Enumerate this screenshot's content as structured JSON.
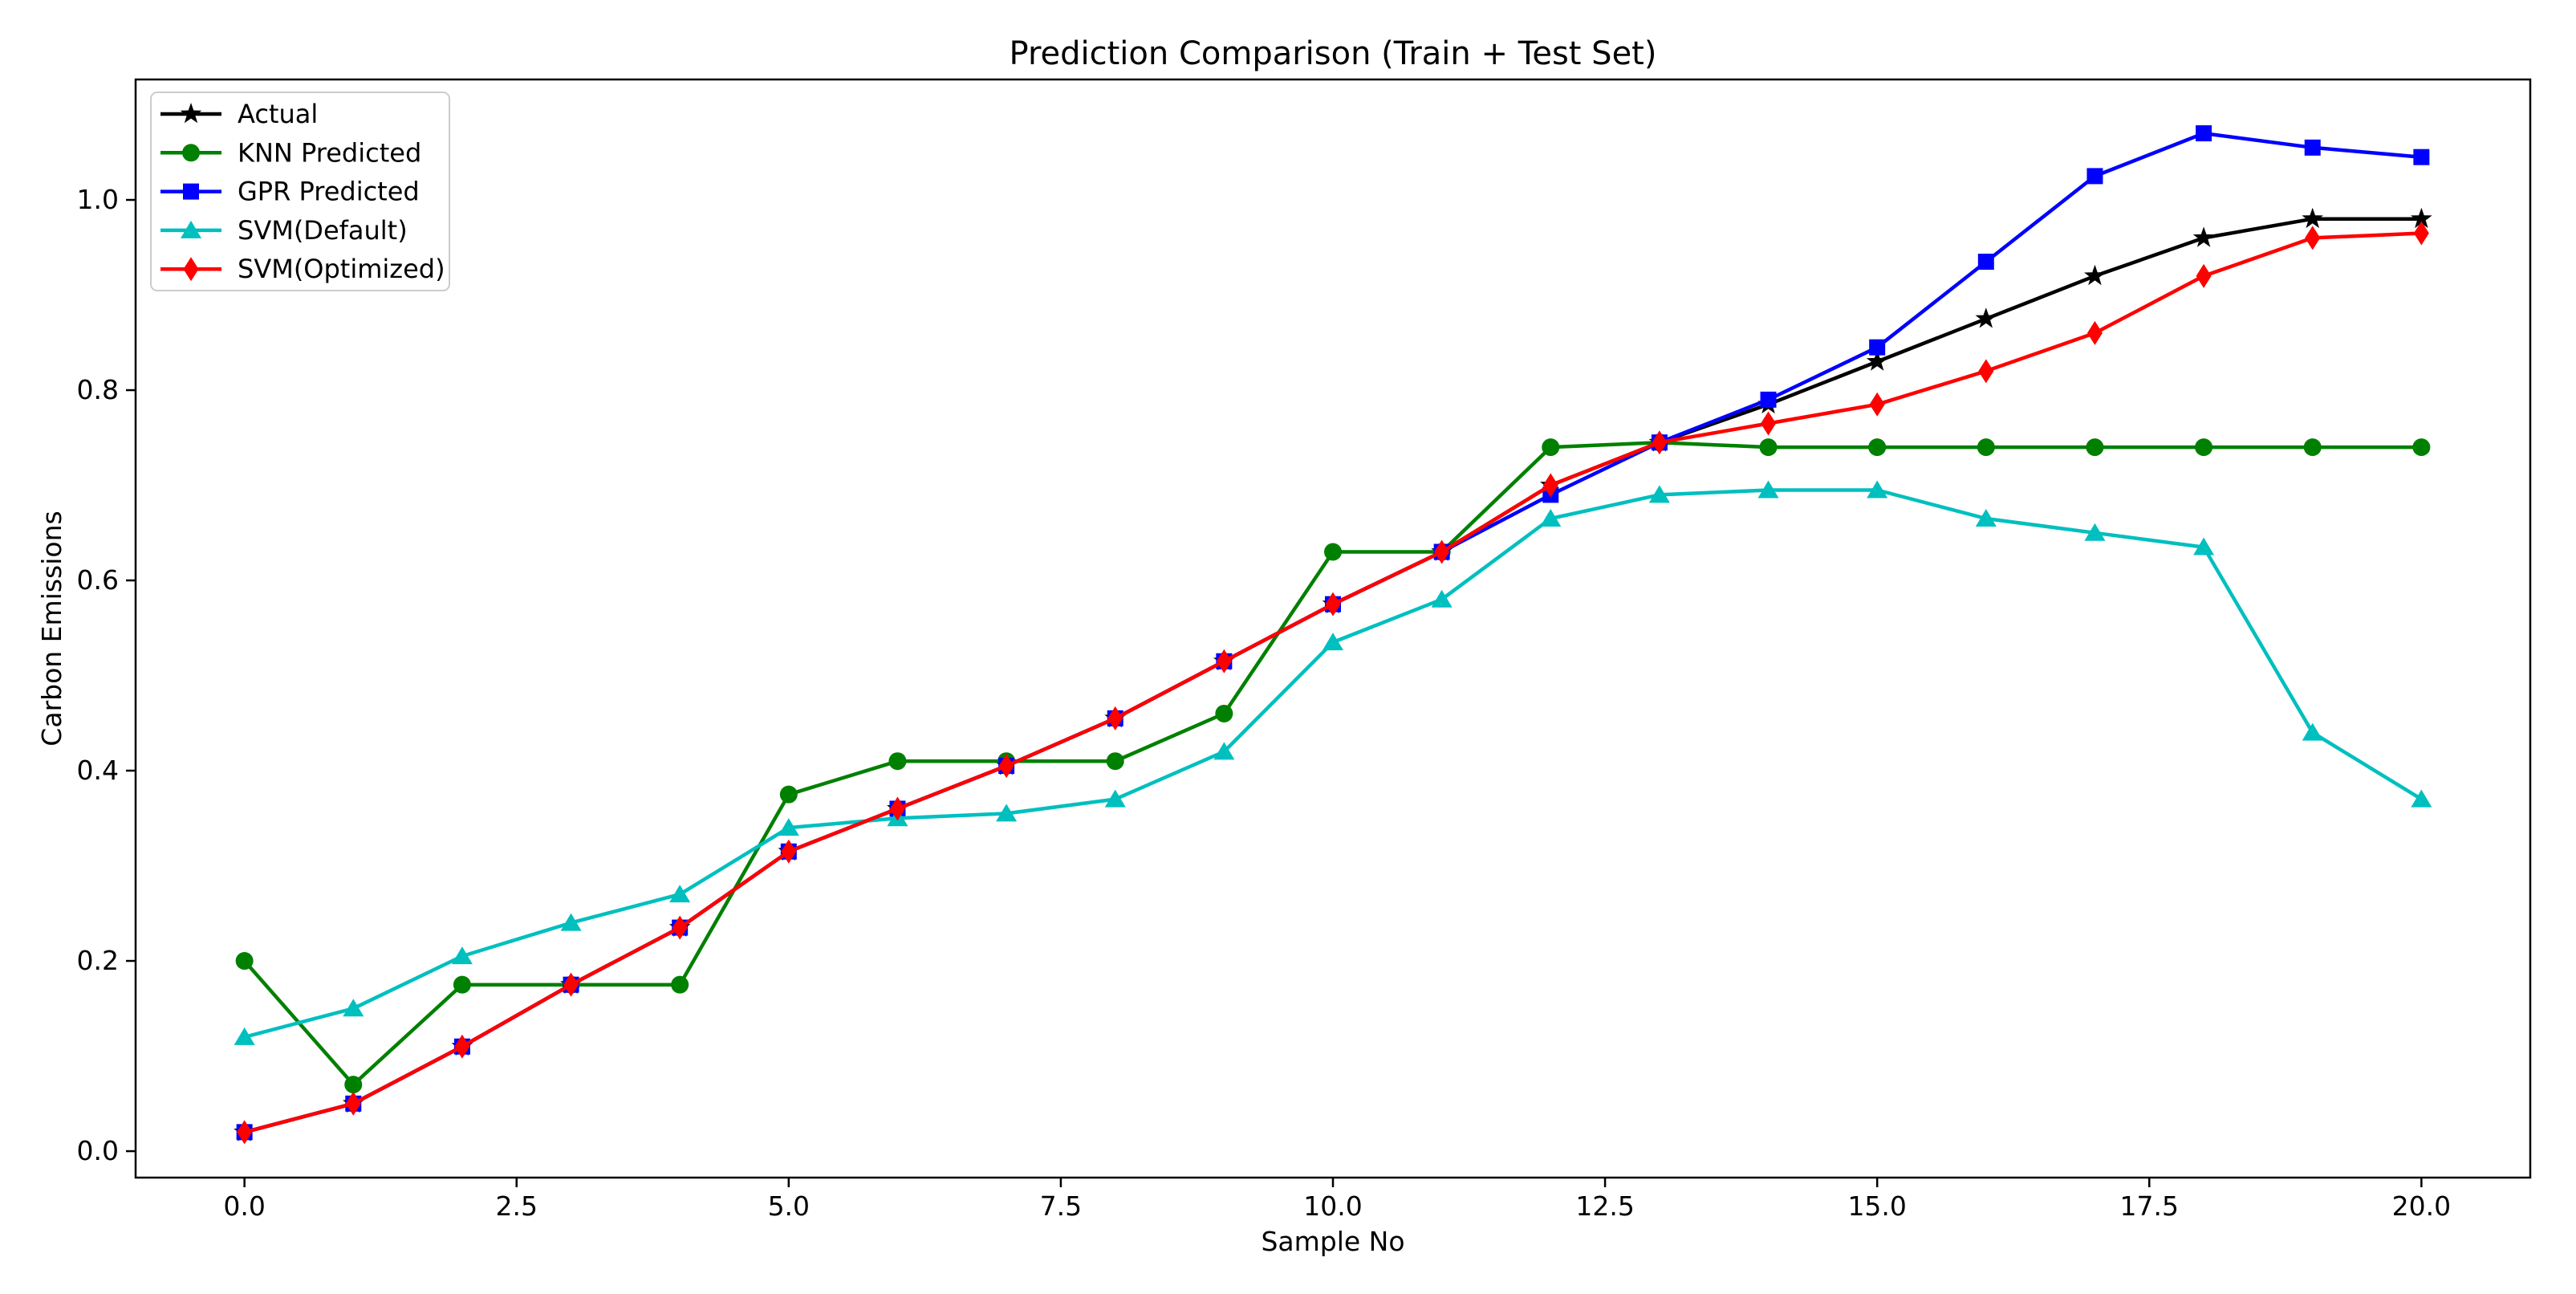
{
  "figure": {
    "background": "#ffffff"
  },
  "chart_data": {
    "type": "line",
    "title": "Prediction Comparison (Train + Test Set)",
    "xlabel": "Sample No",
    "ylabel": "Carbon Emissions",
    "grid": false,
    "legend_position": "upper left",
    "xlim": [
      -1,
      21
    ],
    "ylim": [
      -0.0278,
      1.1266
    ],
    "xticks": [
      0,
      2.5,
      5,
      7.5,
      10,
      12.5,
      15,
      17.5,
      20
    ],
    "xtick_labels": [
      "0.0",
      "2.5",
      "5.0",
      "7.5",
      "10.0",
      "12.5",
      "15.0",
      "17.5",
      "20.0"
    ],
    "yticks": [
      0,
      0.2,
      0.4,
      0.6,
      0.8,
      1.0
    ],
    "ytick_labels": [
      "0.0",
      "0.2",
      "0.4",
      "0.6",
      "0.8",
      "1.0"
    ],
    "x": [
      0,
      1,
      2,
      3,
      4,
      5,
      6,
      7,
      8,
      9,
      10,
      11,
      12,
      13,
      14,
      15,
      16,
      17,
      18,
      19,
      20
    ],
    "series": [
      {
        "name": "Actual",
        "color": "#000000",
        "marker": "star",
        "values": [
          0.02,
          0.05,
          0.11,
          0.175,
          0.235,
          0.315,
          0.36,
          0.405,
          0.455,
          0.515,
          0.575,
          0.63,
          0.7,
          0.745,
          0.785,
          0.83,
          0.875,
          0.92,
          0.96,
          0.98,
          0.98
        ]
      },
      {
        "name": "KNN Predicted",
        "color": "#008000",
        "marker": "circle",
        "values": [
          0.2,
          0.07,
          0.175,
          0.175,
          0.175,
          0.375,
          0.41,
          0.41,
          0.41,
          0.46,
          0.63,
          0.63,
          0.74,
          0.745,
          0.74,
          0.74,
          0.74,
          0.74,
          0.74,
          0.74,
          0.74
        ]
      },
      {
        "name": "GPR Predicted",
        "color": "#0000ff",
        "marker": "square",
        "values": [
          0.02,
          0.05,
          0.11,
          0.175,
          0.235,
          0.315,
          0.36,
          0.405,
          0.455,
          0.515,
          0.575,
          0.63,
          0.69,
          0.745,
          0.79,
          0.845,
          0.935,
          1.025,
          1.07,
          1.055,
          1.045
        ]
      },
      {
        "name": "SVM(Default)",
        "color": "#00bfbf",
        "marker": "triangle",
        "values": [
          0.12,
          0.15,
          0.205,
          0.24,
          0.27,
          0.34,
          0.35,
          0.355,
          0.37,
          0.42,
          0.535,
          0.58,
          0.665,
          0.69,
          0.695,
          0.695,
          0.665,
          0.65,
          0.635,
          0.44,
          0.37
        ]
      },
      {
        "name": "SVM(Optimized)",
        "color": "#ff0000",
        "marker": "diamond",
        "values": [
          0.02,
          0.05,
          0.11,
          0.175,
          0.235,
          0.315,
          0.36,
          0.405,
          0.455,
          0.515,
          0.575,
          0.63,
          0.7,
          0.745,
          0.765,
          0.785,
          0.82,
          0.86,
          0.92,
          0.96,
          0.965
        ]
      }
    ]
  }
}
